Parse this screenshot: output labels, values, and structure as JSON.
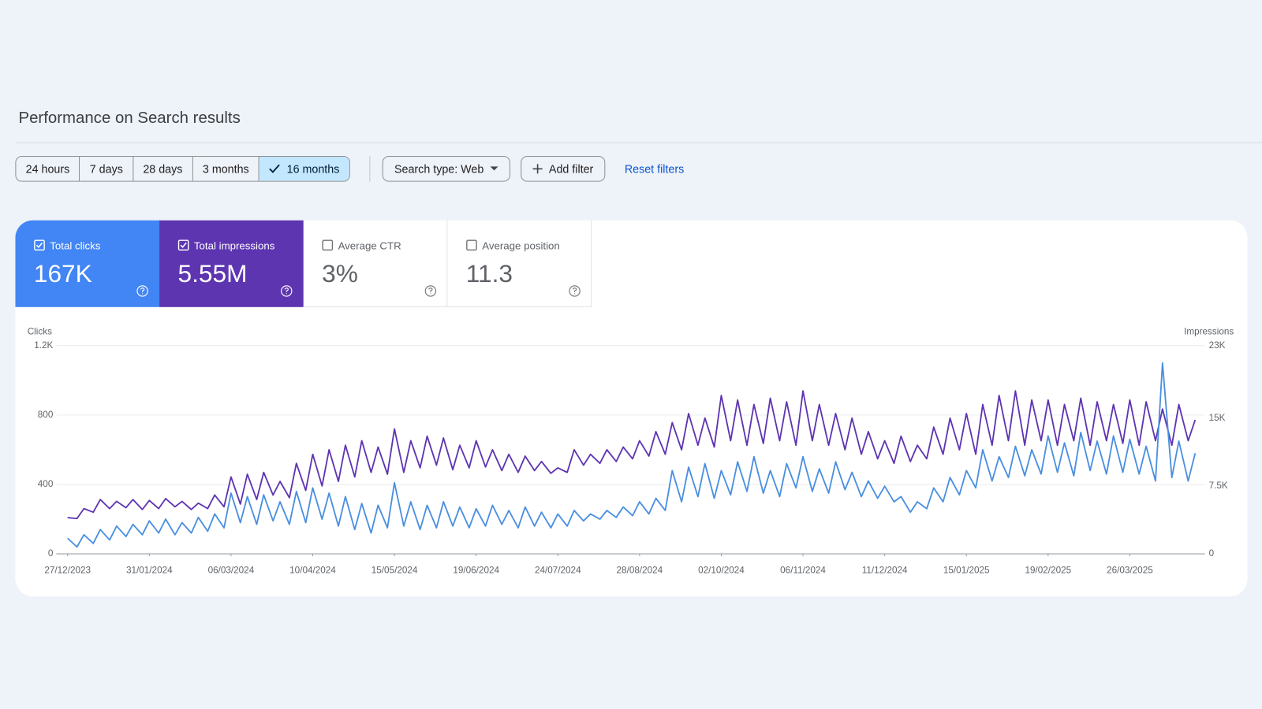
{
  "header": {
    "title": "Performance on Search results"
  },
  "date_filters": [
    {
      "label": "24 hours",
      "selected": false
    },
    {
      "label": "7 days",
      "selected": false
    },
    {
      "label": "28 days",
      "selected": false
    },
    {
      "label": "3 months",
      "selected": false
    },
    {
      "label": "16 months",
      "selected": true
    }
  ],
  "filters": {
    "search_type": "Search type: Web",
    "add_filter": "Add filter",
    "reset": "Reset filters"
  },
  "metrics": [
    {
      "label": "Total clicks",
      "value": "167K",
      "checked": true,
      "color": "#4285f4"
    },
    {
      "label": "Total impressions",
      "value": "5.55M",
      "checked": true,
      "color": "#5e35b1"
    },
    {
      "label": "Average CTR",
      "value": "3%",
      "checked": false
    },
    {
      "label": "Average position",
      "value": "11.3",
      "checked": false
    }
  ],
  "chart_data": {
    "type": "line",
    "y_label": "Clicks",
    "y2_label": "Impressions",
    "x": [
      "27/12/2023",
      "31/12/2023",
      "03/01/2024",
      "07/01/2024",
      "10/01/2024",
      "14/01/2024",
      "17/01/2024",
      "21/01/2024",
      "24/01/2024",
      "28/01/2024",
      "31/01/2024",
      "04/02/2024",
      "07/02/2024",
      "11/02/2024",
      "14/02/2024",
      "18/02/2024",
      "21/02/2024",
      "25/02/2024",
      "28/02/2024",
      "03/03/2024",
      "06/03/2024",
      "10/03/2024",
      "13/03/2024",
      "17/03/2024",
      "20/03/2024",
      "24/03/2024",
      "27/03/2024",
      "31/03/2024",
      "03/04/2024",
      "07/04/2024",
      "10/04/2024",
      "14/04/2024",
      "17/04/2024",
      "21/04/2024",
      "24/04/2024",
      "28/04/2024",
      "01/05/2024",
      "05/05/2024",
      "08/05/2024",
      "12/05/2024",
      "15/05/2024",
      "19/05/2024",
      "22/05/2024",
      "26/05/2024",
      "29/05/2024",
      "02/06/2024",
      "05/06/2024",
      "09/06/2024",
      "12/06/2024",
      "16/06/2024",
      "19/06/2024",
      "23/06/2024",
      "26/06/2024",
      "30/06/2024",
      "03/07/2024",
      "07/07/2024",
      "10/07/2024",
      "14/07/2024",
      "17/07/2024",
      "21/07/2024",
      "24/07/2024",
      "28/07/2024",
      "31/07/2024",
      "04/08/2024",
      "07/08/2024",
      "11/08/2024",
      "14/08/2024",
      "18/08/2024",
      "21/08/2024",
      "25/08/2024",
      "28/08/2024",
      "01/09/2024",
      "04/09/2024",
      "08/09/2024",
      "11/09/2024",
      "15/09/2024",
      "18/09/2024",
      "22/09/2024",
      "25/09/2024",
      "29/09/2024",
      "02/10/2024",
      "06/10/2024",
      "09/10/2024",
      "13/10/2024",
      "16/10/2024",
      "20/10/2024",
      "23/10/2024",
      "27/10/2024",
      "30/10/2024",
      "03/11/2024",
      "06/11/2024",
      "10/11/2024",
      "13/11/2024",
      "17/11/2024",
      "20/11/2024",
      "24/11/2024",
      "27/11/2024",
      "01/12/2024",
      "04/12/2024",
      "08/12/2024",
      "11/12/2024",
      "15/12/2024",
      "18/12/2024",
      "22/12/2024",
      "25/12/2024",
      "29/12/2024",
      "01/01/2025",
      "05/01/2025",
      "08/01/2025",
      "12/01/2025",
      "15/01/2025",
      "19/01/2025",
      "22/01/2025",
      "26/01/2025",
      "29/01/2025",
      "02/02/2025",
      "05/02/2025",
      "09/02/2025",
      "12/02/2025",
      "16/02/2025",
      "19/02/2025",
      "23/02/2025",
      "26/02/2025",
      "02/03/2025",
      "05/03/2025",
      "09/03/2025",
      "12/03/2025",
      "16/03/2025",
      "19/03/2025",
      "23/03/2025",
      "26/03/2025",
      "30/03/2025",
      "02/04/2025",
      "06/04/2025",
      "09/04/2025",
      "13/04/2025",
      "16/04/2025",
      "20/04/2025",
      "23/04/2025"
    ],
    "series": [
      {
        "name": "Clicks",
        "color": "#4a8fe0",
        "axis": "y",
        "values": [
          90,
          40,
          110,
          60,
          140,
          80,
          160,
          100,
          170,
          110,
          190,
          120,
          200,
          110,
          180,
          120,
          210,
          130,
          230,
          150,
          350,
          180,
          330,
          170,
          340,
          190,
          300,
          170,
          360,
          180,
          380,
          200,
          350,
          160,
          330,
          140,
          290,
          120,
          280,
          150,
          410,
          160,
          300,
          140,
          280,
          150,
          300,
          160,
          270,
          150,
          260,
          160,
          280,
          170,
          250,
          150,
          270,
          160,
          240,
          150,
          230,
          160,
          250,
          190,
          230,
          200,
          250,
          210,
          270,
          220,
          300,
          230,
          320,
          250,
          480,
          300,
          500,
          330,
          520,
          320,
          480,
          340,
          530,
          360,
          560,
          350,
          480,
          330,
          520,
          380,
          560,
          360,
          490,
          350,
          530,
          370,
          470,
          330,
          420,
          320,
          390,
          300,
          330,
          240,
          300,
          260,
          380,
          300,
          440,
          340,
          480,
          380,
          600,
          420,
          560,
          440,
          620,
          450,
          600,
          460,
          680,
          470,
          640,
          450,
          700,
          480,
          650,
          460,
          680,
          470,
          660,
          460,
          620,
          420,
          1100,
          440,
          650,
          420,
          580
        ]
      },
      {
        "name": "Impressions",
        "color": "#5e35b1",
        "axis": "y2",
        "values": [
          4000,
          3900,
          5000,
          4600,
          6000,
          5000,
          5800,
          5100,
          6000,
          4900,
          5900,
          5000,
          6100,
          5200,
          5800,
          4900,
          5600,
          5000,
          6500,
          5200,
          8500,
          5500,
          8800,
          6000,
          9000,
          6500,
          8000,
          6200,
          10000,
          7000,
          11000,
          7500,
          11500,
          8000,
          12000,
          8500,
          12500,
          9000,
          11800,
          8800,
          13800,
          9000,
          12500,
          9500,
          13000,
          9800,
          12800,
          9300,
          12000,
          9500,
          12500,
          9600,
          11500,
          9200,
          11000,
          9000,
          10800,
          9200,
          10200,
          8900,
          9500,
          9000,
          11500,
          9800,
          11000,
          10000,
          11500,
          10200,
          11800,
          10500,
          12500,
          10800,
          13500,
          11000,
          14500,
          11500,
          15500,
          12000,
          15000,
          11800,
          17500,
          12500,
          17000,
          12000,
          16500,
          12200,
          17200,
          12500,
          16800,
          12000,
          18000,
          12500,
          16500,
          12000,
          15500,
          11500,
          15000,
          11000,
          13500,
          10500,
          12500,
          10000,
          13000,
          10200,
          12000,
          10500,
          14000,
          11000,
          15000,
          11500,
          15500,
          11000,
          16500,
          12000,
          17500,
          12500,
          18000,
          12000,
          17000,
          12500,
          17000,
          12000,
          16500,
          12500,
          17200,
          12000,
          16800,
          12500,
          16500,
          12200,
          17000,
          12000,
          16800,
          12500,
          16000,
          12000,
          16500,
          12500,
          14800
        ]
      }
    ],
    "xlim": [
      "27/12/2023",
      "23/04/2025"
    ],
    "xticks": [
      "27/12/2023",
      "31/01/2024",
      "06/03/2024",
      "10/04/2024",
      "15/05/2024",
      "19/06/2024",
      "24/07/2024",
      "28/08/2024",
      "02/10/2024",
      "06/11/2024",
      "11/12/2024",
      "15/01/2025",
      "19/02/2025",
      "26/03/2025"
    ],
    "ylim": [
      0,
      1200
    ],
    "yticks": [
      0,
      400,
      800,
      {
        "value": 1200,
        "label": "1.2K"
      }
    ],
    "y2lim": [
      0,
      23000
    ],
    "y2ticks": [
      0,
      {
        "value": 7500,
        "label": "7.5K"
      },
      {
        "value": 15000,
        "label": "15K"
      },
      {
        "value": 23000,
        "label": "23K"
      }
    ],
    "grid": true
  }
}
